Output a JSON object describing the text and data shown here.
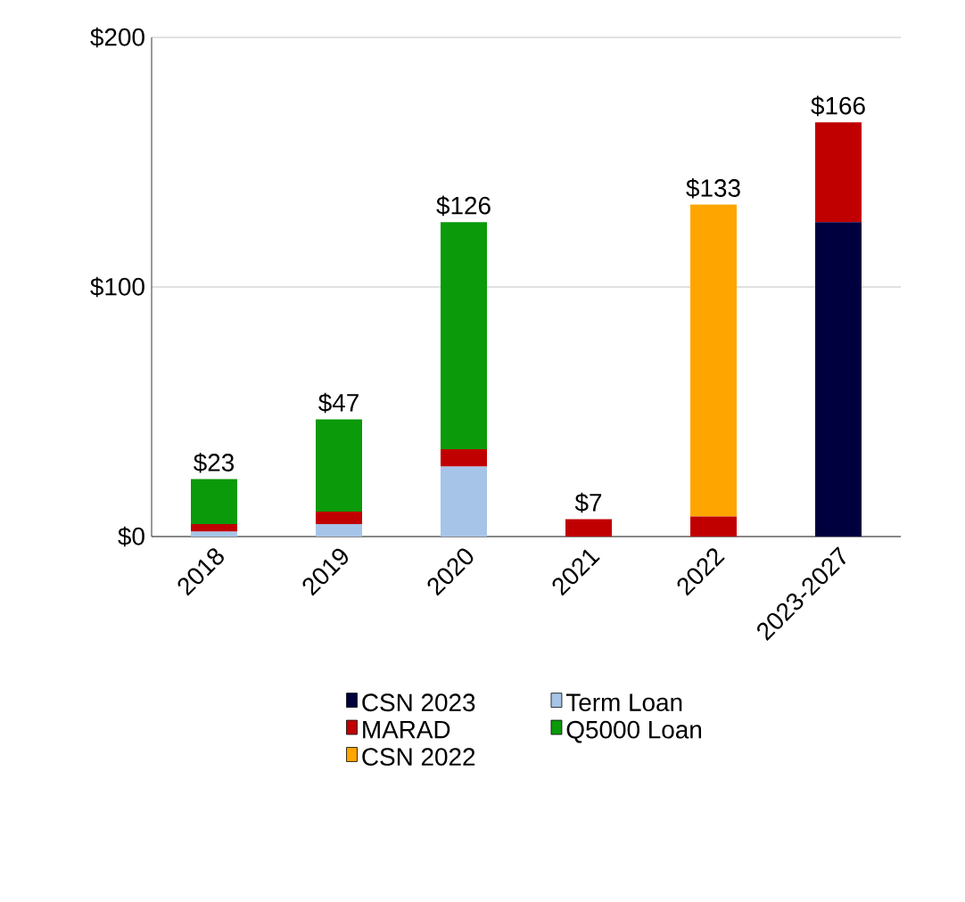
{
  "chart_data": {
    "type": "bar",
    "stacked": true,
    "categories": [
      "2018",
      "2019",
      "2020",
      "2021",
      "2022",
      "2023-2027"
    ],
    "series": [
      {
        "name": "CSN 2023",
        "color": "#00003f",
        "values": [
          0,
          0,
          0,
          0,
          0,
          126
        ]
      },
      {
        "name": "Term Loan",
        "color": "#a6c4e8",
        "values": [
          2,
          5,
          28,
          0,
          0,
          0
        ]
      },
      {
        "name": "MARAD",
        "color": "#c00000",
        "values": [
          3,
          5,
          7,
          7,
          8,
          40
        ]
      },
      {
        "name": "Q5000 Loan",
        "color": "#0a9a0a",
        "values": [
          18,
          37,
          91,
          0,
          0,
          0
        ]
      },
      {
        "name": "CSN 2022",
        "color": "#ffa500",
        "values": [
          0,
          0,
          0,
          0,
          125,
          0
        ]
      }
    ],
    "totals": [
      "$23",
      "$47",
      "$126",
      "$7",
      "$133",
      "$166"
    ],
    "ylim": [
      0,
      200
    ],
    "yticks": [
      {
        "value": 0,
        "label": "$0"
      },
      {
        "value": 100,
        "label": "$100"
      },
      {
        "value": 200,
        "label": "$200"
      }
    ],
    "grid": "y",
    "legend": "bottom"
  }
}
